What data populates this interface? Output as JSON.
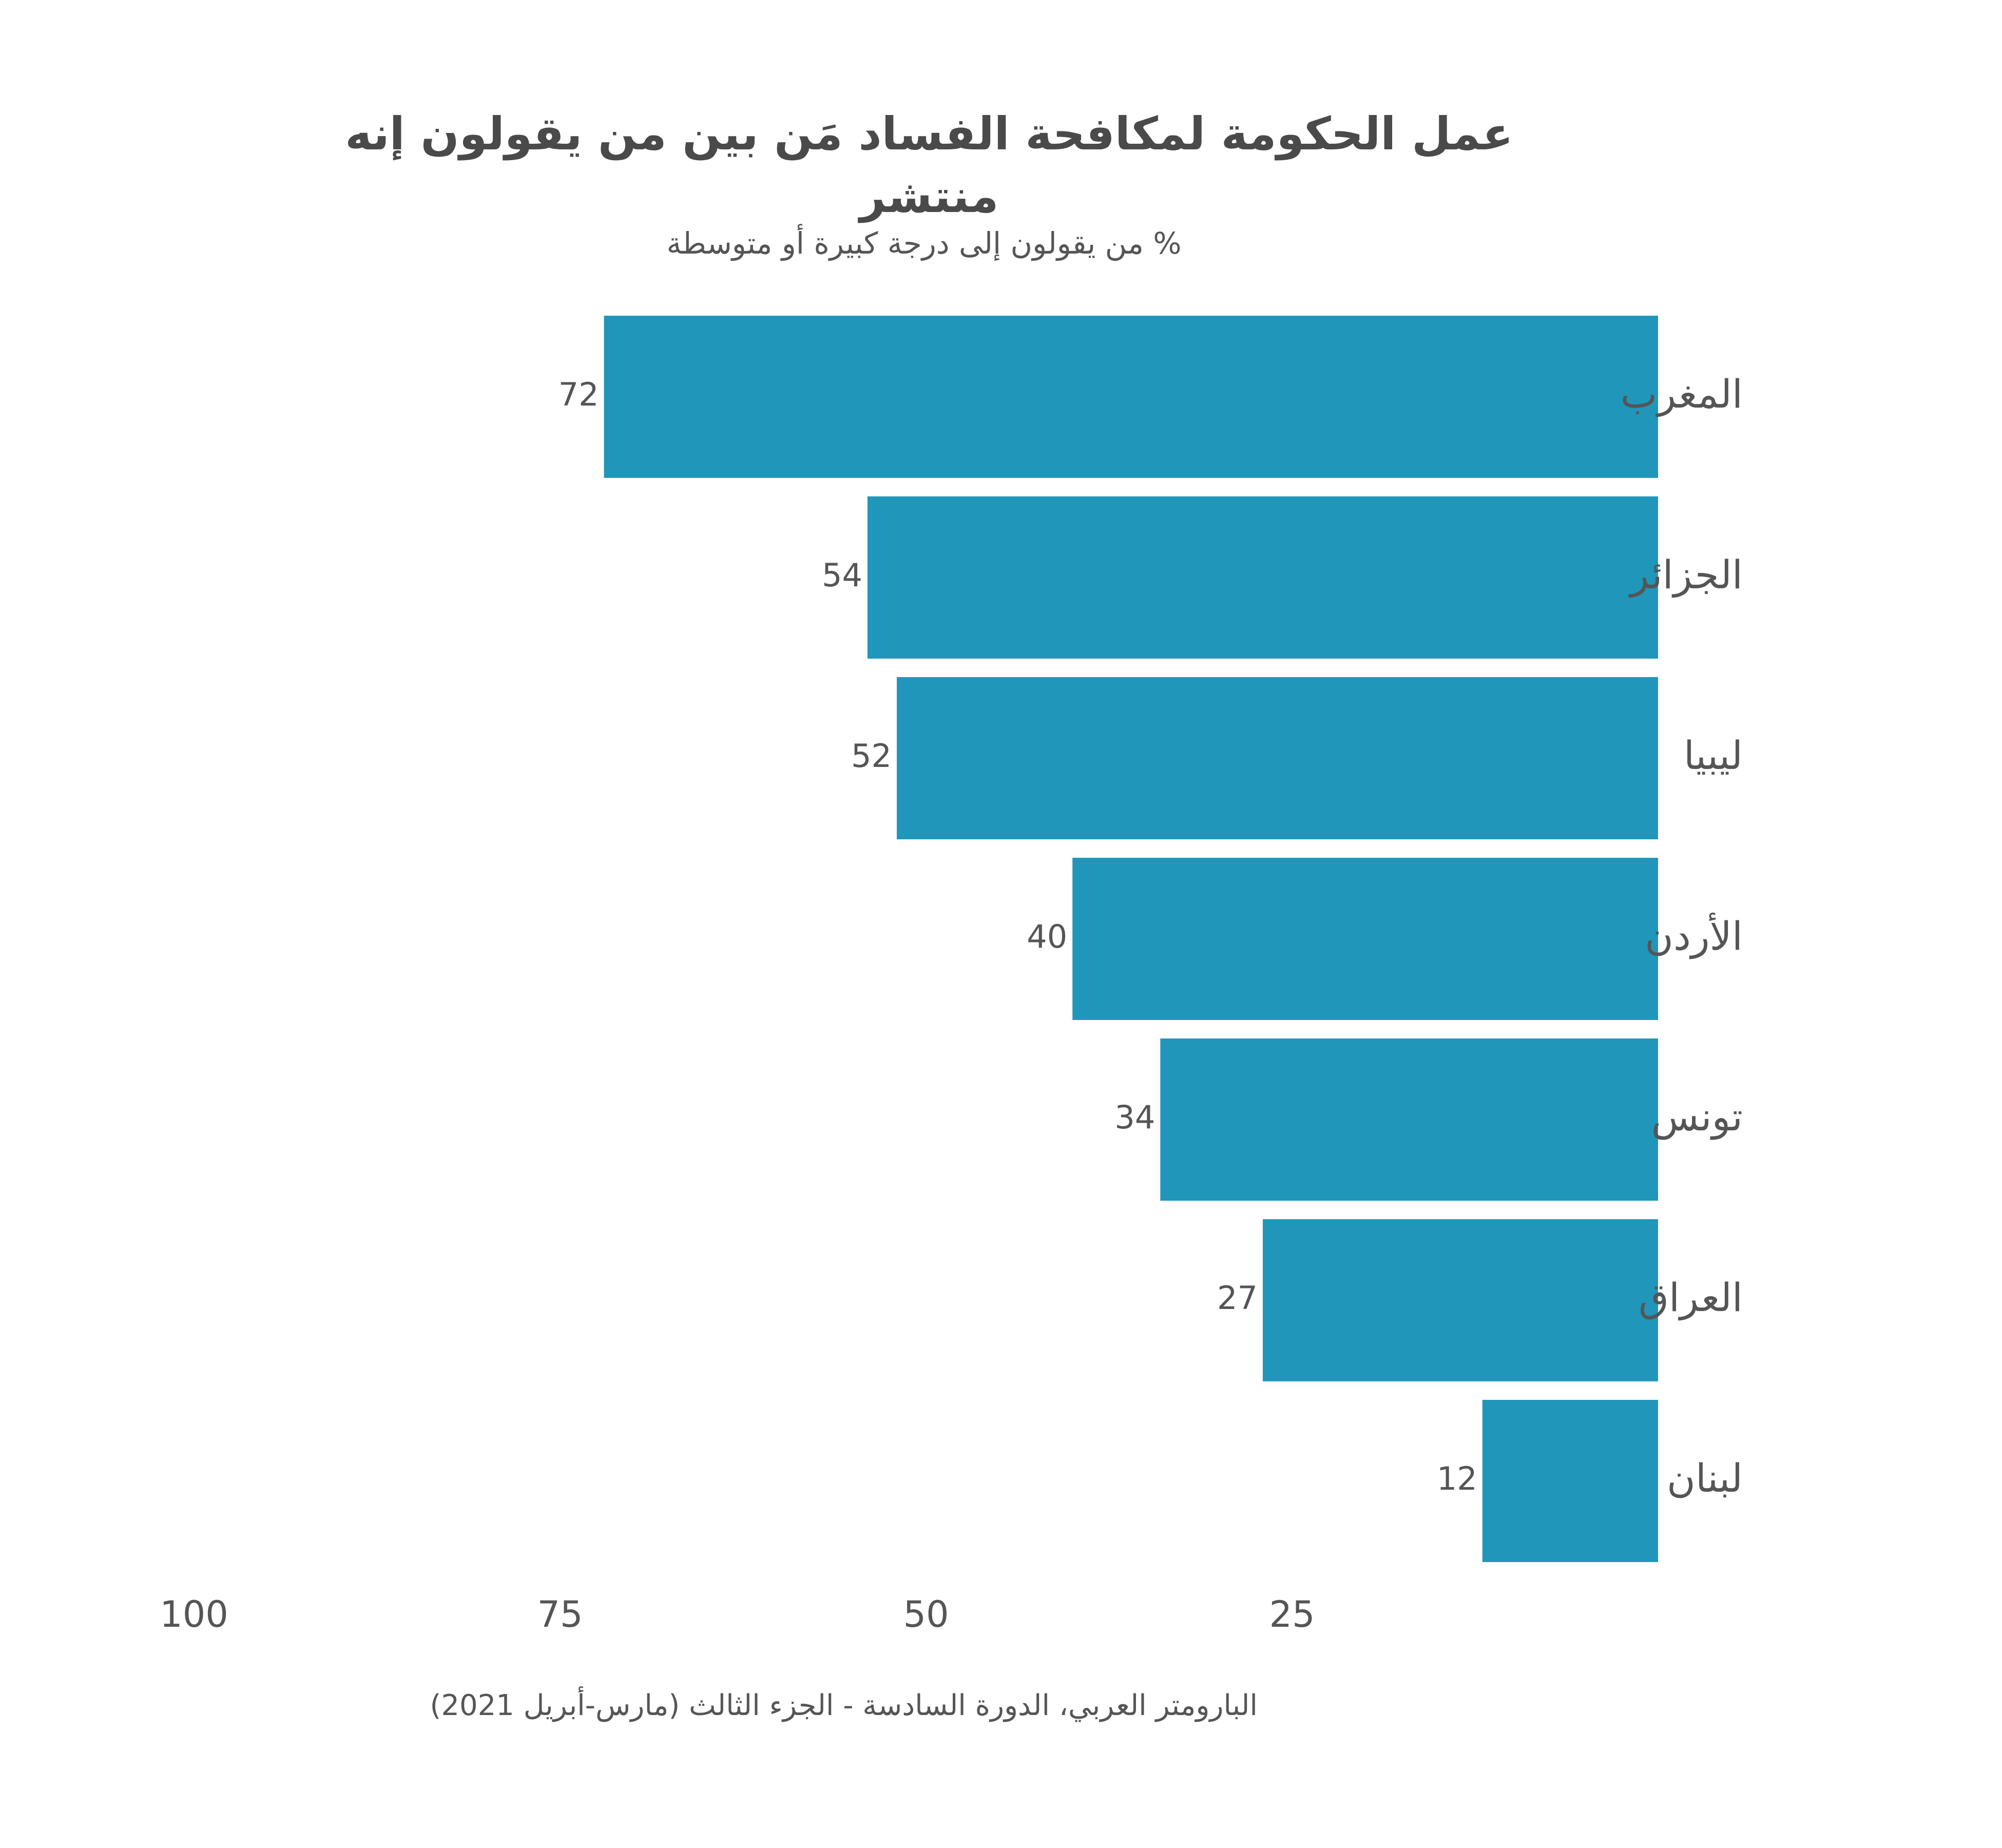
{
  "chart_data": {
    "type": "bar",
    "orientation": "horizontal",
    "title": "عمل الحكومة لمكافحة الفساد مَن بين من يقولون إنه منتشر",
    "subtitle": "% من يقولون إلى درجة كبيرة أو متوسطة",
    "caption": "البارومتر العربي، الدورة السادسة - الجزء الثالث (مارس-أبريل 2021)",
    "categories": [
      "المغرب",
      "الجزائر",
      "ليبيا",
      "الأردن",
      "تونس",
      "العراق",
      "لبنان"
    ],
    "values": [
      72,
      54,
      52,
      40,
      34,
      27,
      12
    ],
    "x_ticks": [
      100,
      75,
      50,
      25
    ],
    "xlim": [
      0,
      100
    ],
    "x_reversed": true,
    "bar_color": "#2196bb",
    "grid": false
  }
}
